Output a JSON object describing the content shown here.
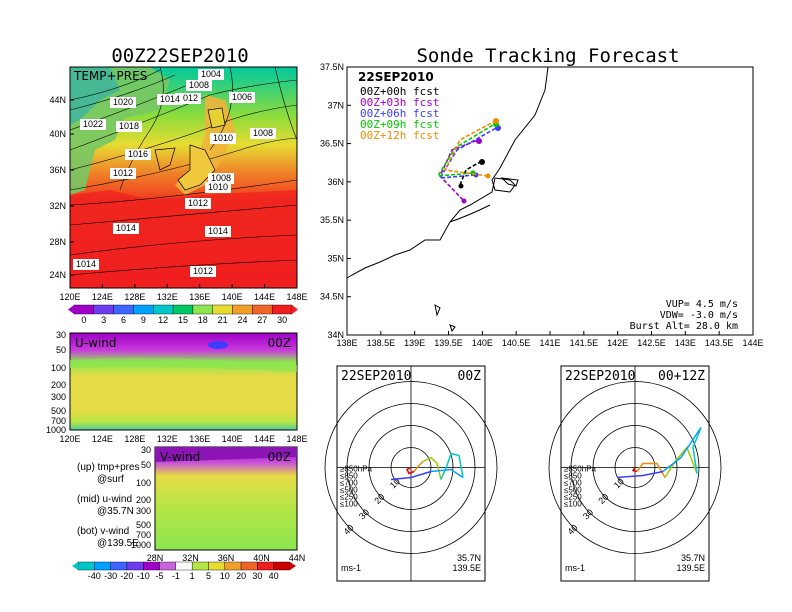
{
  "titles": {
    "left": "00Z22SEP2010",
    "right": "Sonde Tracking Forecast"
  },
  "map_panel": {
    "label": "TEMP+PRES",
    "lat_ticks": [
      "44N",
      "40N",
      "36N",
      "32N",
      "28N",
      "24N"
    ],
    "lon_ticks": [
      "120E",
      "124E",
      "128E",
      "132E",
      "136E",
      "140E",
      "144E",
      "148E"
    ],
    "isobars": [
      "1004",
      "1008",
      "1006",
      "1020",
      "1012",
      "1014",
      "1022",
      "1018",
      "1010",
      "1008",
      "1016",
      "1012",
      "1008",
      "1010",
      "1012",
      "1014",
      "1014",
      "1014",
      "1012"
    ]
  },
  "temp_colorbar": {
    "labels": [
      "0",
      "3",
      "6",
      "9",
      "12",
      "15",
      "18",
      "21",
      "24",
      "27",
      "30"
    ]
  },
  "u_panel": {
    "label": "U-wind",
    "time": "00Z",
    "y_ticks": [
      "30",
      "50",
      "100",
      "200",
      "300",
      "500",
      "700",
      "1000"
    ],
    "x_ticks": [
      "120E",
      "124E",
      "128E",
      "132E",
      "136E",
      "140E",
      "144E",
      "148E"
    ]
  },
  "v_panel": {
    "label": "V-wind",
    "time": "00Z",
    "y_ticks": [
      "30",
      "50",
      "100",
      "200",
      "300",
      "500",
      "700",
      "1000"
    ],
    "x_ticks": [
      "28N",
      "32N",
      "36N",
      "40N",
      "44N"
    ]
  },
  "legend_text": {
    "up": "(up) tmp+pres",
    "up2": "@surf",
    "mid": "(mid) u-wind",
    "mid2": "@35.7N",
    "bot": "(bot) v-wind",
    "bot2": "@139.5E"
  },
  "wind_colorbar": {
    "labels": [
      "-40",
      "-30",
      "-20",
      "-10",
      "-5",
      "-1",
      "1",
      "5",
      "10",
      "20",
      "30",
      "40"
    ]
  },
  "track_panel": {
    "date": "22SEP2010",
    "forecasts": [
      {
        "label": "00Z+00h fcst",
        "color": "#000000"
      },
      {
        "label": "00Z+03h fcst",
        "color": "#a000c8"
      },
      {
        "label": "00Z+06h fcst",
        "color": "#3c3cff"
      },
      {
        "label": "00Z+09h fcst",
        "color": "#00c800"
      },
      {
        "label": "00Z+12h fcst",
        "color": "#f08c00"
      }
    ],
    "lat_ticks": [
      "37.5N",
      "37N",
      "36.5N",
      "36N",
      "35.5N",
      "35N",
      "34.5N",
      "34N"
    ],
    "lon_ticks": [
      "138E",
      "138.5E",
      "139E",
      "139.5E",
      "140E",
      "140.5E",
      "141E",
      "141.5E",
      "142E",
      "142.5E",
      "143E",
      "143.5E",
      "144E"
    ],
    "params": {
      "vup": "VUP=  4.5 m/s",
      "vdw": "VDW= -3.0 m/s",
      "burst": "Burst Alt= 28.0 km"
    }
  },
  "hodo_left": {
    "date": "22SEP2010",
    "time": "00Z",
    "units": "ms-1",
    "lat": "35.7N",
    "lon": "139.5E",
    "ring_labels": [
      "10",
      "20",
      "30",
      "40"
    ],
    "levels": [
      {
        "t": "≥850hPa",
        "c": "#e60000"
      },
      {
        "t": "≤850",
        "c": "#f08c00"
      },
      {
        "t": "≤700",
        "c": "#a0c800"
      },
      {
        "t": "≤500",
        "c": "#00c8c8"
      },
      {
        "t": "≤250",
        "c": "#00a0ff"
      },
      {
        "t": "≤100",
        "c": "#3c3cff"
      }
    ]
  },
  "hodo_right": {
    "date": "22SEP2010",
    "time": "00+12Z",
    "units": "ms-1",
    "lat": "35.7N",
    "lon": "139.5E",
    "ring_labels": [
      "10",
      "20",
      "30",
      "40"
    ],
    "levels": [
      {
        "t": "≥850hPa",
        "c": "#e60000"
      },
      {
        "t": "≤850",
        "c": "#f08c00"
      },
      {
        "t": "≤700",
        "c": "#a0c800"
      },
      {
        "t": "≤500",
        "c": "#00c8c8"
      },
      {
        "t": "≤250",
        "c": "#00a0ff"
      },
      {
        "t": "≤100",
        "c": "#3c3cff"
      }
    ]
  }
}
